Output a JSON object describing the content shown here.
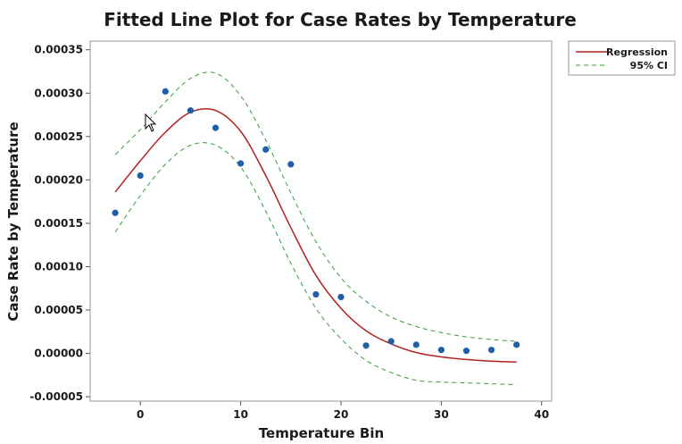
{
  "chart_data": {
    "type": "scatter",
    "title": "Fitted Line Plot for Case Rates by Temperature",
    "xlabel": "Temperature Bin",
    "ylabel": "Case Rate by Temperature",
    "xlim": [
      -5,
      41
    ],
    "ylim": [
      -5.5e-05,
      0.00036
    ],
    "x_ticks": [
      0,
      10,
      20,
      30,
      40
    ],
    "x_tick_labels": [
      "0",
      "10",
      "20",
      "30",
      "40"
    ],
    "y_ticks": [
      -5e-05,
      0,
      5e-05,
      0.0001,
      0.00015,
      0.0002,
      0.00025,
      0.0003,
      0.00035
    ],
    "y_tick_labels": [
      "-0.00005",
      "0.00000",
      "0.00005",
      "0.00010",
      "0.00015",
      "0.00020",
      "0.00025",
      "0.00030",
      "0.00035"
    ],
    "grid": false,
    "legend_position": "outside-right",
    "series": [
      {
        "name": "",
        "kind": "points",
        "color": "#1f5fa8",
        "x": [
          -2.5,
          0,
          2.5,
          5,
          7.5,
          10,
          12.5,
          15,
          17.5,
          20,
          22.5,
          25,
          27.5,
          30,
          32.5,
          35,
          37.5
        ],
        "y": [
          0.000162,
          0.000205,
          0.000302,
          0.00028,
          0.00026,
          0.000219,
          0.000235,
          0.000218,
          6.8e-05,
          6.5e-05,
          9e-06,
          1.4e-05,
          1e-05,
          4e-06,
          3e-06,
          4e-06,
          1e-05
        ]
      },
      {
        "name": "Regression",
        "kind": "line",
        "color": "#b22222",
        "dash": "solid",
        "x": [
          -2.5,
          0,
          2.5,
          5,
          7.5,
          10,
          12.5,
          15,
          17.5,
          20,
          22.5,
          25,
          27.5,
          30,
          32.5,
          35,
          37.5
        ],
        "y": [
          0.000186,
          0.000222,
          0.000255,
          0.000278,
          0.00028,
          0.000256,
          0.000205,
          0.000145,
          9e-05,
          5.2e-05,
          2.6e-05,
          1.1e-05,
          1e-06,
          -4e-06,
          -7e-06,
          -9e-06,
          -1e-05
        ]
      },
      {
        "name": "95% CI",
        "kind": "line",
        "color": "#3a9a3a",
        "dash": "dashed",
        "x": [
          -2.5,
          0,
          2.5,
          5,
          7.5,
          10,
          12.5,
          15,
          17.5,
          20,
          22.5,
          25,
          27.5,
          30,
          32.5,
          35,
          37.5
        ],
        "y": [
          0.000229,
          0.000258,
          0.00029,
          0.000317,
          0.000323,
          0.000297,
          0.000246,
          0.000185,
          0.000129,
          8.7e-05,
          6e-05,
          4.2e-05,
          3.1e-05,
          2.4e-05,
          1.9e-05,
          1.6e-05,
          1.4e-05
        ]
      },
      {
        "name": "",
        "kind": "line",
        "color": "#3a9a3a",
        "dash": "dashed",
        "x": [
          -2.5,
          0,
          2.5,
          5,
          7.5,
          10,
          12.5,
          15,
          17.5,
          20,
          22.5,
          25,
          27.5,
          30,
          32.5,
          35,
          37.5
        ],
        "y": [
          0.00014,
          0.000182,
          0.000218,
          0.00024,
          0.00024,
          0.000215,
          0.000164,
          0.000104,
          5.2e-05,
          1.7e-05,
          -8e-06,
          -2.2e-05,
          -3.1e-05,
          -3.3e-05,
          -3.4e-05,
          -3.5e-05,
          -3.6e-05
        ]
      }
    ],
    "legend": [
      {
        "label": "Regression",
        "color": "#b22222",
        "dash": "solid"
      },
      {
        "label": "95% CI",
        "color": "#3a9a3a",
        "dash": "dashed"
      }
    ]
  }
}
